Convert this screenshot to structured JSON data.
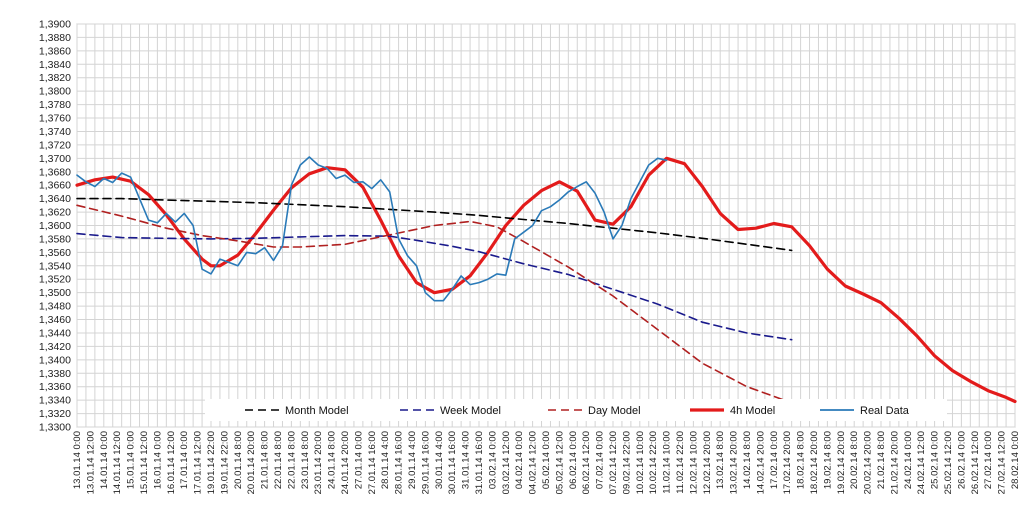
{
  "chart_data": {
    "type": "line",
    "title": "",
    "xlabel": "",
    "ylabel": "",
    "ylim": [
      1.33,
      1.39
    ],
    "y_ticks": [
      "1,3300",
      "1,3320",
      "1,3340",
      "1,3360",
      "1,3380",
      "1,3400",
      "1,3420",
      "1,3440",
      "1,3460",
      "1,3480",
      "1,3500",
      "1,3520",
      "1,3540",
      "1,3560",
      "1,3580",
      "1,3600",
      "1,3620",
      "1,3640",
      "1,3660",
      "1,3680",
      "1,3700",
      "1,3720",
      "1,3740",
      "1,3760",
      "1,3780",
      "1,3800",
      "1,3820",
      "1,3840",
      "1,3860",
      "1,3880",
      "1,3900"
    ],
    "x_ticks": [
      "13.01.14 0:00",
      "13.01.14 12:00",
      "14.01.14 0:00",
      "14.01.14 12:00",
      "15.01.14 0:00",
      "15.01.14 12:00",
      "16.01.14 0:00",
      "16.01.14 12:00",
      "17.01.14 0:00",
      "17.01.14 12:00",
      "19.01.14 22:00",
      "19.01.14 22:00",
      "20.01.14 8:00",
      "20.01.14 20:00",
      "21.01.14 8:00",
      "22.01.14 8:00",
      "22.01.14 8:00",
      "23.01.14 8:00",
      "23.01.14 20:00",
      "24.01.14 8:00",
      "24.01.14 20:00",
      "27.01.14 0:00",
      "27.01.14 16:00",
      "28.01.14 4:00",
      "28.01.14 16:00",
      "29.01.14 4:00",
      "29.01.14 16:00",
      "30.01.14 4:00",
      "30.01.14 16:00",
      "31.01.14 4:00",
      "31.01.14 16:00",
      "03.02.14 0:00",
      "03.02.14 12:00",
      "04.02.14 0:00",
      "04.02.14 12:00",
      "05.02.14 0:00",
      "05.02.14 12:00",
      "06.02.14 0:00",
      "06.02.14 12:00",
      "07.02.14 0:00",
      "07.02.14 12:00",
      "09.02.14 22:00",
      "10.02.14 10:00",
      "10.02.14 22:00",
      "11.02.14 10:00",
      "11.02.14 22:00",
      "12.02.14 10:00",
      "12.02.14 20:00",
      "13.02.14 8:00",
      "13.02.14 20:00",
      "14.02.14 8:00",
      "14.02.14 20:00",
      "17.02.14 0:00",
      "17.02.14 20:00",
      "18.02.14 8:00",
      "18.02.14 20:00",
      "19.02.14 8:00",
      "19.02.14 20:00",
      "20.02.14 8:00",
      "20.02.14 20:00",
      "21.02.14 8:00",
      "21.02.14 20:00",
      "24.02.14 0:00",
      "24.02.14 12:00",
      "25.02.14 0:00",
      "25.02.14 12:00",
      "26.02.14 0:00",
      "26.02.14 12:00",
      "27.02.14 0:00",
      "27.02.14 12:00",
      "28.02.14 0:00"
    ],
    "grid": true,
    "legend_placement": "bottom",
    "series": [
      {
        "name": "Month Model",
        "color": "#000000",
        "style": "dashed",
        "points": [
          [
            0,
            1.364
          ],
          [
            5,
            1.364
          ],
          [
            10,
            1.3638
          ],
          [
            15,
            1.3636
          ],
          [
            20,
            1.3634
          ],
          [
            25,
            1.3631
          ],
          [
            30,
            1.3628
          ],
          [
            35,
            1.3624
          ],
          [
            40,
            1.362
          ],
          [
            45,
            1.3615
          ],
          [
            50,
            1.3609
          ],
          [
            55,
            1.3603
          ],
          [
            60,
            1.3596
          ],
          [
            65,
            1.3589
          ],
          [
            70,
            1.3581
          ],
          [
            75,
            1.3572
          ],
          [
            80,
            1.3563
          ]
        ]
      },
      {
        "name": "Week Model",
        "color": "#1a1a8c",
        "style": "dashed",
        "points": [
          [
            0,
            1.3588
          ],
          [
            5,
            1.3582
          ],
          [
            10,
            1.3581
          ],
          [
            15,
            1.358
          ],
          [
            20,
            1.3581
          ],
          [
            25,
            1.3583
          ],
          [
            30,
            1.3585
          ],
          [
            35,
            1.3584
          ],
          [
            38,
            1.3578
          ],
          [
            42,
            1.3569
          ],
          [
            45,
            1.3561
          ],
          [
            50,
            1.3543
          ],
          [
            55,
            1.3527
          ],
          [
            60,
            1.3505
          ],
          [
            65,
            1.3483
          ],
          [
            70,
            1.3456
          ],
          [
            75,
            1.344
          ],
          [
            80,
            1.343
          ]
        ]
      },
      {
        "name": "Day Model",
        "color": "#b02020",
        "style": "dashed",
        "points": [
          [
            0,
            1.363
          ],
          [
            5,
            1.3614
          ],
          [
            10,
            1.3596
          ],
          [
            14,
            1.3585
          ],
          [
            18,
            1.3577
          ],
          [
            22,
            1.3568
          ],
          [
            25,
            1.3568
          ],
          [
            30,
            1.3572
          ],
          [
            35,
            1.3586
          ],
          [
            40,
            1.36
          ],
          [
            44,
            1.3606
          ],
          [
            47,
            1.3598
          ],
          [
            50,
            1.3576
          ],
          [
            55,
            1.3538
          ],
          [
            60,
            1.3495
          ],
          [
            65,
            1.3445
          ],
          [
            70,
            1.3395
          ],
          [
            75,
            1.336
          ],
          [
            80,
            1.3336
          ]
        ]
      },
      {
        "name": "4h Model",
        "color": "#e31b1b",
        "style": "solid",
        "points": [
          [
            0,
            1.366
          ],
          [
            2,
            1.3668
          ],
          [
            4,
            1.3672
          ],
          [
            6,
            1.3666
          ],
          [
            8,
            1.3646
          ],
          [
            10,
            1.3616
          ],
          [
            12,
            1.358
          ],
          [
            14,
            1.355
          ],
          [
            15,
            1.354
          ],
          [
            16,
            1.354
          ],
          [
            18,
            1.3556
          ],
          [
            20,
            1.3588
          ],
          [
            22,
            1.3623
          ],
          [
            24,
            1.3656
          ],
          [
            26,
            1.3677
          ],
          [
            28,
            1.3686
          ],
          [
            30,
            1.3683
          ],
          [
            32,
            1.3657
          ],
          [
            34,
            1.3608
          ],
          [
            36,
            1.3555
          ],
          [
            38,
            1.3515
          ],
          [
            40,
            1.35
          ],
          [
            42,
            1.3505
          ],
          [
            44,
            1.3525
          ],
          [
            46,
            1.356
          ],
          [
            48,
            1.36
          ],
          [
            50,
            1.363
          ],
          [
            52,
            1.3652
          ],
          [
            54,
            1.3665
          ],
          [
            56,
            1.3651
          ],
          [
            58,
            1.3608
          ],
          [
            60,
            1.3602
          ],
          [
            62,
            1.3628
          ],
          [
            64,
            1.3675
          ],
          [
            66,
            1.37
          ],
          [
            68,
            1.3692
          ],
          [
            70,
            1.3658
          ],
          [
            72,
            1.3618
          ],
          [
            74,
            1.3594
          ],
          [
            76,
            1.3596
          ],
          [
            78,
            1.3603
          ],
          [
            80,
            1.3598
          ],
          [
            82,
            1.357
          ],
          [
            84,
            1.3535
          ],
          [
            86,
            1.351
          ],
          [
            88,
            1.3498
          ],
          [
            90,
            1.3485
          ],
          [
            92,
            1.3462
          ],
          [
            94,
            1.3436
          ],
          [
            96,
            1.3406
          ],
          [
            98,
            1.3384
          ],
          [
            100,
            1.3368
          ],
          [
            102,
            1.3354
          ],
          [
            104,
            1.3344
          ],
          [
            105,
            1.3338
          ]
        ]
      },
      {
        "name": "Real Data",
        "color": "#2a7ab8",
        "style": "solid",
        "points": [
          [
            0,
            1.3675
          ],
          [
            1,
            1.3665
          ],
          [
            2,
            1.3658
          ],
          [
            3,
            1.367
          ],
          [
            4,
            1.3664
          ],
          [
            5,
            1.3678
          ],
          [
            6,
            1.3672
          ],
          [
            7,
            1.364
          ],
          [
            8,
            1.3608
          ],
          [
            9,
            1.3604
          ],
          [
            10,
            1.3618
          ],
          [
            11,
            1.3605
          ],
          [
            12,
            1.3618
          ],
          [
            13,
            1.36
          ],
          [
            14,
            1.3535
          ],
          [
            15,
            1.3528
          ],
          [
            16,
            1.355
          ],
          [
            17,
            1.3545
          ],
          [
            18,
            1.354
          ],
          [
            19,
            1.356
          ],
          [
            20,
            1.3558
          ],
          [
            21,
            1.3567
          ],
          [
            22,
            1.3548
          ],
          [
            23,
            1.357
          ],
          [
            24,
            1.366
          ],
          [
            25,
            1.369
          ],
          [
            26,
            1.3702
          ],
          [
            27,
            1.369
          ],
          [
            28,
            1.3685
          ],
          [
            29,
            1.367
          ],
          [
            30,
            1.3675
          ],
          [
            31,
            1.3664
          ],
          [
            32,
            1.3665
          ],
          [
            33,
            1.3655
          ],
          [
            34,
            1.3668
          ],
          [
            35,
            1.365
          ],
          [
            36,
            1.358
          ],
          [
            37,
            1.3555
          ],
          [
            38,
            1.354
          ],
          [
            39,
            1.35
          ],
          [
            40,
            1.3488
          ],
          [
            41,
            1.3488
          ],
          [
            42,
            1.3505
          ],
          [
            43,
            1.3525
          ],
          [
            44,
            1.3512
          ],
          [
            45,
            1.3515
          ],
          [
            46,
            1.352
          ],
          [
            47,
            1.3528
          ],
          [
            48,
            1.3526
          ],
          [
            49,
            1.358
          ],
          [
            50,
            1.359
          ],
          [
            51,
            1.36
          ],
          [
            52,
            1.3622
          ],
          [
            53,
            1.3628
          ],
          [
            54,
            1.3638
          ],
          [
            55,
            1.365
          ],
          [
            56,
            1.3658
          ],
          [
            57,
            1.3665
          ],
          [
            58,
            1.3648
          ],
          [
            59,
            1.362
          ],
          [
            60,
            1.358
          ],
          [
            61,
            1.36
          ],
          [
            62,
            1.364
          ],
          [
            63,
            1.3665
          ],
          [
            64,
            1.369
          ],
          [
            65,
            1.37
          ],
          [
            66,
            1.3697
          ]
        ]
      }
    ]
  }
}
